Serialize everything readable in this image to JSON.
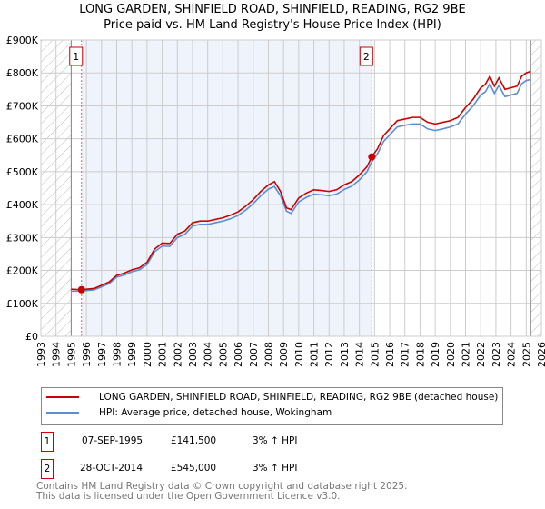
{
  "title_line1": "LONG GARDEN, SHINFIELD ROAD, SHINFIELD, READING, RG2 9BE",
  "title_line2": "Price paid vs. HM Land Registry's House Price Index (HPI)",
  "chart_data": {
    "type": "line",
    "xlim": [
      1993,
      2026
    ],
    "ylim": [
      0,
      900000
    ],
    "x_ticks": [
      "1993",
      "1994",
      "1995",
      "1996",
      "1997",
      "1998",
      "1999",
      "2000",
      "2001",
      "2002",
      "2003",
      "2004",
      "2005",
      "2006",
      "2007",
      "2008",
      "2009",
      "2010",
      "2011",
      "2012",
      "2013",
      "2014",
      "2015",
      "2016",
      "2017",
      "2018",
      "2019",
      "2020",
      "2021",
      "2022",
      "2023",
      "2024",
      "2025",
      "2026"
    ],
    "y_ticks": [
      {
        "v": 0,
        "l": "£0"
      },
      {
        "v": 100000,
        "l": "£100K"
      },
      {
        "v": 200000,
        "l": "£200K"
      },
      {
        "v": 300000,
        "l": "£300K"
      },
      {
        "v": 400000,
        "l": "£400K"
      },
      {
        "v": 500000,
        "l": "£500K"
      },
      {
        "v": 600000,
        "l": "£600K"
      },
      {
        "v": 700000,
        "l": "£700K"
      },
      {
        "v": 800000,
        "l": "£800K"
      },
      {
        "v": 900000,
        "l": "£900K"
      }
    ],
    "hatch_ranges": [
      [
        1993,
        1995
      ],
      [
        2025.3,
        2026
      ]
    ],
    "shade_range": [
      1995.68,
      2014.82
    ],
    "series": [
      {
        "name": "LONG GARDEN, SHINFIELD ROAD, SHINFIELD, READING, RG2 9BE (detached house)",
        "color": "#cc0000",
        "x": [
          1995,
          1995.68,
          1996,
          1996.5,
          1997,
          1997.5,
          1998,
          1998.5,
          1999,
          1999.5,
          2000,
          2000.5,
          2001,
          2001.5,
          2002,
          2002.5,
          2003,
          2003.5,
          2004,
          2004.5,
          2005,
          2005.5,
          2006,
          2006.5,
          2007,
          2007.5,
          2008,
          2008.4,
          2008.8,
          2009.2,
          2009.5,
          2010,
          2010.5,
          2011,
          2011.5,
          2012,
          2012.5,
          2013,
          2013.5,
          2014,
          2014.5,
          2014.82,
          2015.2,
          2015.6,
          2016,
          2016.5,
          2017,
          2017.5,
          2018,
          2018.5,
          2019,
          2019.5,
          2020,
          2020.5,
          2021,
          2021.5,
          2022,
          2022.3,
          2022.6,
          2022.9,
          2023.2,
          2023.6,
          2024,
          2024.4,
          2024.7,
          2025,
          2025.3
        ],
        "y": [
          143000,
          141500,
          143000,
          145000,
          155000,
          165000,
          185000,
          192000,
          202000,
          208000,
          225000,
          265000,
          283000,
          282000,
          310000,
          320000,
          345000,
          350000,
          350000,
          355000,
          360000,
          368000,
          378000,
          395000,
          415000,
          440000,
          460000,
          470000,
          440000,
          390000,
          385000,
          420000,
          435000,
          445000,
          443000,
          440000,
          445000,
          460000,
          470000,
          490000,
          515000,
          545000,
          570000,
          610000,
          630000,
          655000,
          660000,
          665000,
          665000,
          650000,
          645000,
          650000,
          655000,
          665000,
          695000,
          720000,
          755000,
          765000,
          790000,
          760000,
          785000,
          750000,
          755000,
          760000,
          790000,
          800000,
          805000
        ]
      },
      {
        "name": "HPI: Average price, detached house, Wokingham",
        "color": "#5b8fd4",
        "x": [
          1995,
          1995.68,
          1996,
          1996.5,
          1997,
          1997.5,
          1998,
          1998.5,
          1999,
          1999.5,
          2000,
          2000.5,
          2001,
          2001.5,
          2002,
          2002.5,
          2003,
          2003.5,
          2004,
          2004.5,
          2005,
          2005.5,
          2006,
          2006.5,
          2007,
          2007.5,
          2008,
          2008.4,
          2008.8,
          2009.2,
          2009.5,
          2010,
          2010.5,
          2011,
          2011.5,
          2012,
          2012.5,
          2013,
          2013.5,
          2014,
          2014.5,
          2014.82,
          2015.2,
          2015.6,
          2016,
          2016.5,
          2017,
          2017.5,
          2018,
          2018.5,
          2019,
          2019.5,
          2020,
          2020.5,
          2021,
          2021.5,
          2022,
          2022.3,
          2022.6,
          2022.9,
          2023.2,
          2023.6,
          2024,
          2024.4,
          2024.7,
          2025,
          2025.3
        ],
        "y": [
          137000,
          137000,
          139000,
          141000,
          150000,
          160000,
          180000,
          186000,
          196000,
          202000,
          218000,
          257000,
          274000,
          273000,
          300000,
          310000,
          335000,
          340000,
          340000,
          345000,
          350000,
          357000,
          367000,
          383000,
          403000,
          427000,
          447000,
          455000,
          427000,
          380000,
          373000,
          408000,
          422000,
          432000,
          430000,
          427000,
          432000,
          446000,
          456000,
          475000,
          500000,
          530000,
          555000,
          592000,
          612000,
          636000,
          641000,
          645000,
          645000,
          630000,
          625000,
          630000,
          636000,
          645000,
          675000,
          700000,
          733000,
          742000,
          767000,
          738000,
          762000,
          728000,
          733000,
          738000,
          767000,
          777000,
          780000
        ]
      }
    ],
    "markers": [
      {
        "label": "1",
        "x": 1995.68,
        "y": 141500
      },
      {
        "label": "2",
        "x": 2014.82,
        "y": 545000
      }
    ]
  },
  "legend": {
    "red": "LONG GARDEN, SHINFIELD ROAD, SHINFIELD, READING, RG2 9BE (detached house)",
    "blue": "HPI: Average price, detached house, Wokingham"
  },
  "transactions": [
    {
      "num": "1",
      "date": "07-SEP-1995",
      "price": "£141,500",
      "hpi": "3% ↑ HPI"
    },
    {
      "num": "2",
      "date": "28-OCT-2014",
      "price": "£545,000",
      "hpi": "3% ↑ HPI"
    }
  ],
  "footer": {
    "line1": "Contains HM Land Registry data © Crown copyright and database right 2025.",
    "line2": "This data is licensed under the Open Government Licence v3.0."
  }
}
